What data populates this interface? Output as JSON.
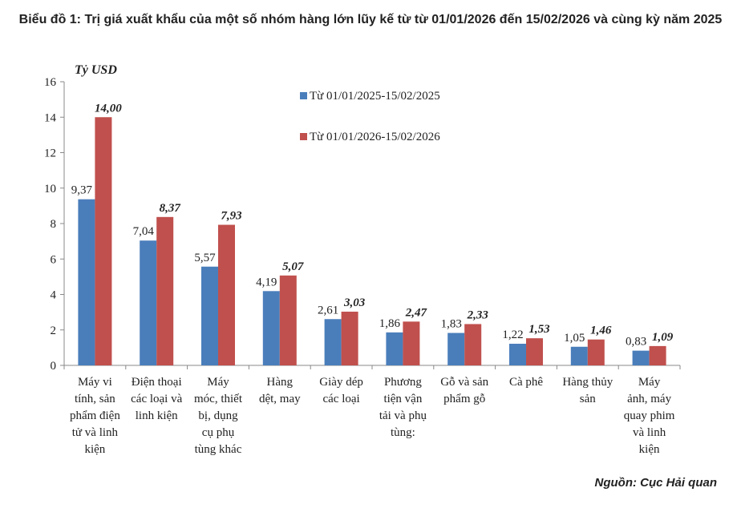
{
  "title": "Biểu đồ 1: Trị giá xuất khẩu của một số nhóm hàng lớn lũy kế từ từ 01/01/2026 đến 15/02/2026 và cùng kỳ năm 2025",
  "source": "Nguồn: Cục Hải quan",
  "chart_data": {
    "type": "bar",
    "title": "Biểu đồ 1: Trị giá xuất khẩu của một số nhóm hàng lớn lũy kế từ từ 01/01/2026 đến 15/02/2026 và cùng kỳ năm 2025",
    "ylabel": "Tỷ USD",
    "xlabel": "",
    "ylim": [
      0,
      16
    ],
    "yticks": [
      0,
      2,
      4,
      6,
      8,
      10,
      12,
      14,
      16
    ],
    "grid": false,
    "legend_position": "top-left",
    "categories": [
      "Máy vi tính, sản phẩm điện tử và linh kiện",
      "Điện thoại các loại và linh kiện",
      "Máy móc, thiết bị, dụng cụ phụ tùng khác",
      "Hàng dệt, may",
      "Giày dép các loại",
      "Phương tiện vận tải và phụ tùng",
      "Gỗ và sản phẩm gỗ",
      "Cà phê",
      "Hàng thủy sản",
      "Máy ảnh, máy quay phim và linh kiện"
    ],
    "category_label_lines": [
      [
        "Máy vi",
        "tính, sản",
        "phẩm điện",
        "tử và linh",
        "kiện"
      ],
      [
        "Điện thoại",
        "các loại và",
        "linh kiện"
      ],
      [
        "Máy",
        "móc, thiết",
        "bị, dụng",
        "cụ phụ",
        "tùng khác"
      ],
      [
        "Hàng",
        "dệt, may"
      ],
      [
        "Giày dép",
        "các loại"
      ],
      [
        "Phương",
        "tiện vận",
        "tải và phụ",
        "tùng:"
      ],
      [
        "Gỗ và sản",
        "phẩm gỗ"
      ],
      [
        "Cà phê"
      ],
      [
        "Hàng thủy",
        "sản"
      ],
      [
        "Máy",
        "ảnh, máy",
        "quay phim",
        "và linh",
        "kiện"
      ]
    ],
    "series": [
      {
        "name": "Từ 01/01/2025-15/02/2025",
        "color": "#4a7ebb",
        "values": [
          9.37,
          7.04,
          5.57,
          4.19,
          2.61,
          1.86,
          1.83,
          1.22,
          1.05,
          0.83
        ],
        "labels": [
          "9,37",
          "7,04",
          "5,57",
          "4,19",
          "2,61",
          "1,86",
          "1,83",
          "1,22",
          "1,05",
          "0,83"
        ]
      },
      {
        "name": "Từ 01/01/2026-15/02/2026",
        "color": "#c0504d",
        "values": [
          14.0,
          8.37,
          7.93,
          5.07,
          3.03,
          2.47,
          2.33,
          1.53,
          1.46,
          1.09
        ],
        "labels": [
          "14,00",
          "8,37",
          "7,93",
          "5,07",
          "3,03",
          "2,47",
          "2,33",
          "1,53",
          "1,46",
          "1,09"
        ]
      }
    ]
  }
}
